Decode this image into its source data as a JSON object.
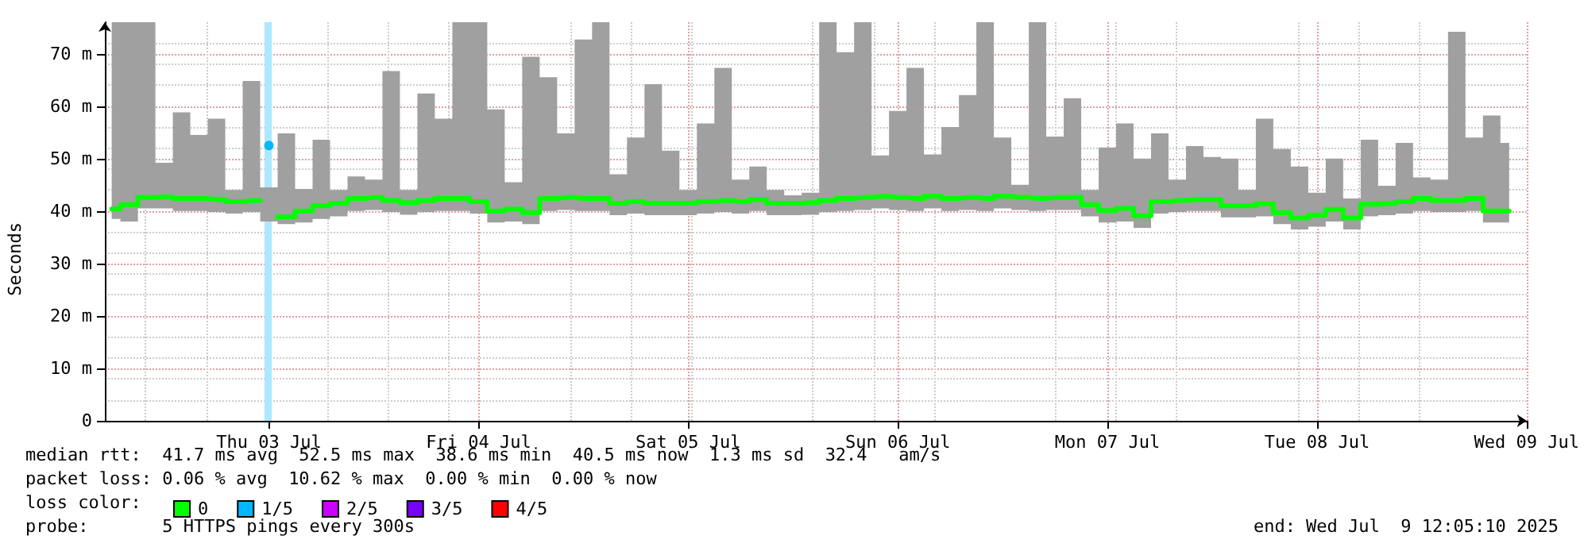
{
  "chart_data": {
    "type": "step",
    "ylabel": "Seconds",
    "x": [
      "2025-07-02T06:00",
      "2025-07-02T08:00",
      "2025-07-02T10:00",
      "2025-07-02T12:00",
      "2025-07-02T14:00",
      "2025-07-02T16:00",
      "2025-07-02T18:00",
      "2025-07-02T20:00",
      "2025-07-02T22:00",
      "2025-07-03T00:00",
      "2025-07-03T02:00",
      "2025-07-03T04:00",
      "2025-07-03T06:00",
      "2025-07-03T08:00",
      "2025-07-03T10:00",
      "2025-07-03T12:00",
      "2025-07-03T14:00",
      "2025-07-03T16:00",
      "2025-07-03T18:00",
      "2025-07-03T20:00",
      "2025-07-03T22:00",
      "2025-07-04T00:00",
      "2025-07-04T02:00",
      "2025-07-04T04:00",
      "2025-07-04T06:00",
      "2025-07-04T08:00",
      "2025-07-04T10:00",
      "2025-07-04T12:00",
      "2025-07-04T14:00",
      "2025-07-04T16:00",
      "2025-07-04T18:00",
      "2025-07-04T20:00",
      "2025-07-04T22:00",
      "2025-07-05T00:00",
      "2025-07-05T02:00",
      "2025-07-05T04:00",
      "2025-07-05T06:00",
      "2025-07-05T08:00",
      "2025-07-05T10:00",
      "2025-07-05T12:00",
      "2025-07-05T14:00",
      "2025-07-05T16:00",
      "2025-07-05T18:00",
      "2025-07-05T20:00",
      "2025-07-05T22:00",
      "2025-07-06T00:00",
      "2025-07-06T02:00",
      "2025-07-06T04:00",
      "2025-07-06T06:00",
      "2025-07-06T08:00",
      "2025-07-06T10:00",
      "2025-07-06T12:00",
      "2025-07-06T14:00",
      "2025-07-06T16:00",
      "2025-07-06T18:00",
      "2025-07-06T20:00",
      "2025-07-06T22:00",
      "2025-07-07T00:00",
      "2025-07-07T02:00",
      "2025-07-07T04:00",
      "2025-07-07T06:00",
      "2025-07-07T08:00",
      "2025-07-07T10:00",
      "2025-07-07T12:00",
      "2025-07-07T14:00",
      "2025-07-07T16:00",
      "2025-07-07T18:00",
      "2025-07-07T20:00",
      "2025-07-07T22:00",
      "2025-07-08T00:00",
      "2025-07-08T02:00",
      "2025-07-08T04:00",
      "2025-07-08T06:00",
      "2025-07-08T08:00",
      "2025-07-08T10:00",
      "2025-07-08T12:00",
      "2025-07-08T14:00",
      "2025-07-08T16:00",
      "2025-07-08T18:00",
      "2025-07-08T20:00",
      "2025-07-08T22:00"
    ],
    "series": [
      {
        "name": "0",
        "color": "#00ff00",
        "values": [
          40.4,
          41.2,
          42.6,
          42.7,
          42.4,
          42.4,
          42.2,
          41.8,
          42,
          null,
          38.9,
          40,
          41,
          41.5,
          42.4,
          42.6,
          42,
          41.6,
          42,
          42.4,
          42.4,
          41.8,
          40,
          40.4,
          39.7,
          42.4,
          42.6,
          42.4,
          42.4,
          41.5,
          41.8,
          41.5,
          41.5,
          41.5,
          41.8,
          42,
          41.8,
          42.2,
          41.5,
          41.5,
          41.6,
          42,
          42.4,
          42.6,
          42.8,
          42.6,
          42.4,
          42.8,
          42.4,
          42.6,
          42.4,
          42.8,
          42.6,
          42.4,
          42.6,
          42.6,
          41.2,
          40.1,
          40.5,
          39.1,
          41.8,
          42,
          42.2,
          42.2,
          41,
          41,
          41.4,
          39.7,
          38.7,
          39.2,
          40.3,
          38.7,
          41.3,
          41.4,
          41.8,
          42.4,
          42,
          42,
          42.4,
          40,
          40
        ],
        "lower": [
          38.5,
          38,
          40.5,
          40.5,
          40,
          40,
          39.8,
          39.5,
          39.8,
          38,
          37.5,
          37.8,
          38.5,
          39,
          40,
          40.2,
          39.8,
          39.3,
          39.8,
          40,
          40,
          39.5,
          37.8,
          38,
          37.5,
          40,
          40.2,
          40,
          40,
          39.2,
          39.5,
          39.2,
          39.2,
          39.2,
          39.5,
          39.8,
          39.5,
          40,
          39.2,
          39.2,
          39.3,
          39.8,
          40,
          40.2,
          40.5,
          40.2,
          40,
          40.5,
          40,
          40.2,
          40,
          40.5,
          40.2,
          40,
          40.2,
          40.2,
          39,
          37.8,
          38,
          36.8,
          39.5,
          39.8,
          40,
          40,
          38.8,
          38.8,
          39,
          37.5,
          36.5,
          37,
          38,
          36.5,
          39,
          39.2,
          39.5,
          40,
          39.8,
          39.8,
          40,
          37.8,
          37.8
        ],
        "upper": [
          76,
          76,
          76,
          49.2,
          58.8,
          54.5,
          57.6,
          44,
          64.8,
          44.5,
          54.8,
          44.2,
          53.6,
          44,
          46.6,
          46,
          66.7,
          44,
          62.4,
          57.6,
          76,
          76,
          59.4,
          45.5,
          69.4,
          65.5,
          54.8,
          72.7,
          76,
          47,
          54,
          64.2,
          51.5,
          44,
          56.7,
          67.3,
          46,
          48.5,
          44,
          43,
          43.5,
          76,
          70.3,
          76,
          50.6,
          59.1,
          67.3,
          50.8,
          56,
          62.1,
          76,
          54,
          45,
          76,
          54.2,
          61.5,
          44,
          52.1,
          56.7,
          50,
          54.8,
          46,
          52.4,
          50.3,
          50,
          44,
          57.6,
          51.8,
          48.5,
          43.5,
          50,
          42.4,
          53.6,
          44.8,
          53,
          46.4,
          46,
          74.2,
          54,
          58.2,
          53
        ]
      },
      {
        "name": "1/5",
        "color": "#00b8ff",
        "type": "line",
        "marker": "circle",
        "values": [
          null,
          null,
          null,
          null,
          null,
          null,
          null,
          null,
          null,
          52.5,
          null,
          null,
          null,
          null,
          null,
          null,
          null,
          null,
          null,
          null,
          null,
          null,
          null,
          null,
          null,
          null,
          null,
          null,
          null,
          null,
          null,
          null,
          null,
          null,
          null,
          null,
          null,
          null,
          null,
          null,
          null,
          null,
          null,
          null,
          null,
          null,
          null,
          null,
          null,
          null,
          null,
          null,
          null,
          null,
          null,
          null,
          null,
          null,
          null,
          null,
          null,
          null,
          null,
          null,
          null,
          null,
          null,
          null,
          null,
          null,
          null,
          null,
          null,
          null,
          null,
          null,
          null,
          null,
          null,
          null,
          null
        ]
      },
      {
        "name": "2/5",
        "color": "#cc00ff",
        "values": [
          null,
          null,
          null,
          null,
          null,
          null,
          null,
          null,
          null,
          null,
          null,
          null,
          null,
          null,
          null,
          null,
          null,
          null,
          null,
          null,
          null,
          null,
          null,
          null,
          null,
          null,
          null,
          null,
          null,
          null,
          null,
          null,
          null,
          null,
          null,
          null,
          null,
          null,
          null,
          null,
          null,
          null,
          null,
          null,
          null,
          null,
          null,
          null,
          null,
          null,
          null,
          null,
          null,
          null,
          null,
          null,
          null,
          null,
          null,
          null,
          null,
          null,
          null,
          null,
          null,
          null,
          null,
          null,
          null,
          null,
          null,
          null,
          null,
          null,
          null,
          null,
          null,
          null,
          null,
          null,
          null
        ]
      },
      {
        "name": "3/5",
        "color": "#7700ff",
        "values": [
          null,
          null,
          null,
          null,
          null,
          null,
          null,
          null,
          null,
          null,
          null,
          null,
          null,
          null,
          null,
          null,
          null,
          null,
          null,
          null,
          null,
          null,
          null,
          null,
          null,
          null,
          null,
          null,
          null,
          null,
          null,
          null,
          null,
          null,
          null,
          null,
          null,
          null,
          null,
          null,
          null,
          null,
          null,
          null,
          null,
          null,
          null,
          null,
          null,
          null,
          null,
          null,
          null,
          null,
          null,
          null,
          null,
          null,
          null,
          null,
          null,
          null,
          null,
          null,
          null,
          null,
          null,
          null,
          null,
          null,
          null,
          null,
          null,
          null,
          null,
          null,
          null,
          null,
          null,
          null,
          null
        ]
      },
      {
        "name": "4/5",
        "color": "#ff0000",
        "values": [
          null,
          null,
          null,
          null,
          null,
          null,
          null,
          null,
          null,
          null,
          null,
          null,
          null,
          null,
          null,
          null,
          null,
          null,
          null,
          null,
          null,
          null,
          null,
          null,
          null,
          null,
          null,
          null,
          null,
          null,
          null,
          null,
          null,
          null,
          null,
          null,
          null,
          null,
          null,
          null,
          null,
          null,
          null,
          null,
          null,
          null,
          null,
          null,
          null,
          null,
          null,
          null,
          null,
          null,
          null,
          null,
          null,
          null,
          null,
          null,
          null,
          null,
          null,
          null,
          null,
          null,
          null,
          null,
          null,
          null,
          null,
          null,
          null,
          null,
          null,
          null,
          null,
          null,
          null,
          null,
          null
        ]
      }
    ],
    "bands": [
      {
        "axis": "x",
        "from": "2025-07-02T23:30",
        "to": "2025-07-03T00:20",
        "color": "#aee8ff"
      }
    ],
    "xlim": [
      "2025-07-02T05:13",
      "2025-07-09T00:00"
    ],
    "xticks": [
      {
        "value": "2025-07-03T00:00",
        "label": "Thu 03 Jul"
      },
      {
        "value": "2025-07-04T00:00",
        "label": "Fri 04 Jul"
      },
      {
        "value": "2025-07-05T00:00",
        "label": "Sat 05 Jul"
      },
      {
        "value": "2025-07-06T00:00",
        "label": "Sun 06 Jul"
      },
      {
        "value": "2025-07-07T00:00",
        "label": "Mon 07 Jul"
      },
      {
        "value": "2025-07-08T00:00",
        "label": "Tue 08 Jul"
      },
      {
        "value": "2025-07-09T00:00",
        "label": "Wed 09 Jul"
      }
    ],
    "ylim": [
      0,
      76
    ],
    "yticks": [
      0,
      {
        "value": 10,
        "label": "10 m"
      },
      {
        "value": 20,
        "label": "20 m"
      },
      {
        "value": 30,
        "label": "30 m"
      },
      {
        "value": 40,
        "label": "40 m"
      },
      {
        "value": 50,
        "label": "50 m"
      },
      {
        "value": 60,
        "label": "60 m"
      },
      {
        "value": 70,
        "label": "70 m"
      }
    ],
    "grid": true,
    "legend": "bottom left",
    "legend_title": "loss color:",
    "marker": "none",
    "line_style": "solid",
    "annotations": [
      "median rtt:  41.7 ms avg  52.5 ms max  38.6 ms min  40.5 ms now  1.3 ms sd  32.4   am/s",
      "packet loss: 0.06 % avg  10.62 % max  0.00 % min  0.00 % now",
      "probe:       5 HTTPS pings every 300s",
      "end: Wed Jul  9 12:05:10 2025"
    ]
  }
}
